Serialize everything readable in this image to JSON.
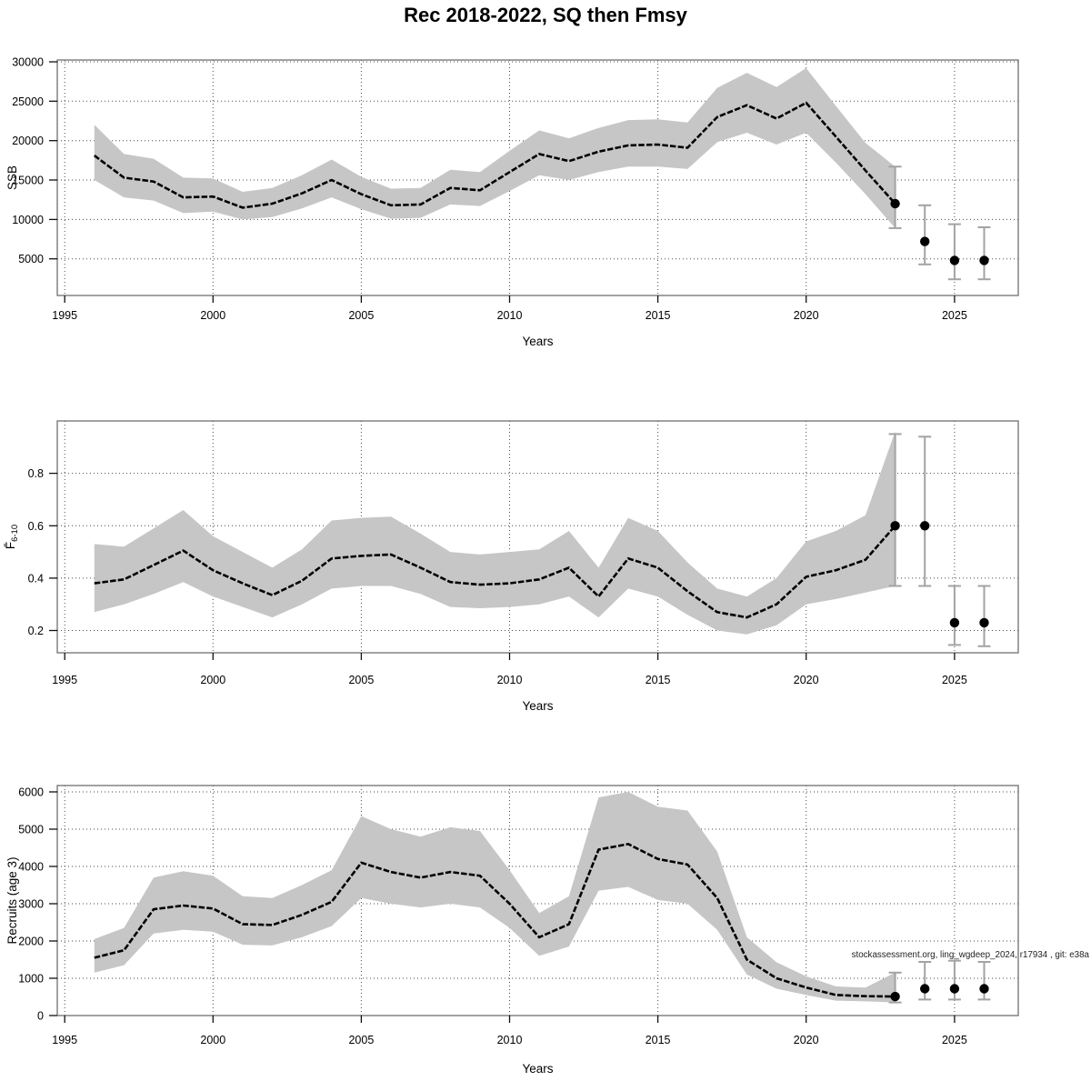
{
  "figure": {
    "title": "Rec 2018-2022, SQ then Fmsy"
  },
  "style": {
    "band_color": "#c6c6c6",
    "line_color": "#000000",
    "errorbar_color": "#a3a3a3",
    "grid_color": "#4a4a4a",
    "frame_color": "#707070",
    "tick_color": "#111111",
    "dot_color": "#000000",
    "text_color": "#000000",
    "annotation_color": "#222222"
  },
  "chart_data": [
    {
      "type": "area",
      "name": "ssb",
      "ylabel_parts": [
        {
          "t": "SSB"
        }
      ],
      "xlabel": "Years",
      "xlim": [
        1994.75,
        2027.15
      ],
      "ylim": [
        350,
        30230
      ],
      "xticks": [
        1995,
        2000,
        2005,
        2010,
        2015,
        2020,
        2025
      ],
      "yticks": [
        5000,
        10000,
        15000,
        20000,
        25000,
        30000
      ],
      "grid": "dotted",
      "years": [
        1996,
        1997,
        1998,
        1999,
        2000,
        2001,
        2002,
        2003,
        2004,
        2005,
        2006,
        2007,
        2008,
        2009,
        2010,
        2011,
        2012,
        2013,
        2014,
        2015,
        2016,
        2017,
        2018,
        2019,
        2020,
        2021,
        2022,
        2023
      ],
      "median": [
        18100,
        15300,
        14800,
        12800,
        12900,
        11500,
        12000,
        13300,
        15000,
        13200,
        11800,
        11900,
        14000,
        13700,
        16000,
        18300,
        17400,
        18600,
        19400,
        19500,
        19100,
        23000,
        24500,
        22800,
        24800,
        20500,
        16200,
        12000
      ],
      "lo": [
        15000,
        12800,
        12400,
        10800,
        11000,
        10000,
        10300,
        11400,
        12800,
        11300,
        10100,
        10200,
        11900,
        11700,
        13600,
        15600,
        15000,
        16000,
        16700,
        16700,
        16400,
        19800,
        21000,
        19500,
        21000,
        17200,
        13200,
        8900
      ],
      "hi": [
        22000,
        18300,
        17700,
        15300,
        15200,
        13500,
        14000,
        15600,
        17600,
        15400,
        13900,
        14000,
        16300,
        16000,
        18700,
        21300,
        20300,
        21600,
        22600,
        22700,
        22300,
        26700,
        28600,
        26800,
        29200,
        24400,
        19700,
        16700
      ],
      "forecast": {
        "years": [
          2023,
          2024,
          2025,
          2026
        ],
        "values": [
          12000,
          7200,
          4800,
          4800
        ],
        "lo": [
          8900,
          4300,
          2400,
          2400
        ],
        "hi": [
          16700,
          11800,
          9400,
          9000
        ]
      },
      "annotation": ""
    },
    {
      "type": "area",
      "name": "fbar",
      "ylabel_parts": [
        {
          "t": "F̄"
        },
        {
          "t": "6-10",
          "sub": true
        }
      ],
      "xlabel": "Years",
      "xlim": [
        1994.75,
        2027.15
      ],
      "ylim": [
        0.115,
        1.0
      ],
      "xticks": [
        1995,
        2000,
        2005,
        2010,
        2015,
        2020,
        2025
      ],
      "yticks": [
        0.2,
        0.4,
        0.6,
        0.8
      ],
      "grid": "dotted",
      "years": [
        1996,
        1997,
        1998,
        1999,
        2000,
        2001,
        2002,
        2003,
        2004,
        2005,
        2006,
        2007,
        2008,
        2009,
        2010,
        2011,
        2012,
        2013,
        2014,
        2015,
        2016,
        2017,
        2018,
        2019,
        2020,
        2021,
        2022,
        2023
      ],
      "median": [
        0.38,
        0.395,
        0.45,
        0.505,
        0.43,
        0.38,
        0.335,
        0.39,
        0.475,
        0.485,
        0.49,
        0.44,
        0.385,
        0.375,
        0.38,
        0.395,
        0.44,
        0.33,
        0.475,
        0.44,
        0.35,
        0.27,
        0.25,
        0.3,
        0.405,
        0.43,
        0.47,
        0.6
      ],
      "lo": [
        0.27,
        0.3,
        0.34,
        0.385,
        0.33,
        0.29,
        0.25,
        0.3,
        0.36,
        0.37,
        0.37,
        0.34,
        0.29,
        0.285,
        0.29,
        0.3,
        0.33,
        0.25,
        0.36,
        0.33,
        0.26,
        0.2,
        0.185,
        0.22,
        0.3,
        0.32,
        0.345,
        0.37
      ],
      "hi": [
        0.53,
        0.52,
        0.59,
        0.66,
        0.56,
        0.5,
        0.44,
        0.51,
        0.62,
        0.63,
        0.635,
        0.57,
        0.5,
        0.49,
        0.5,
        0.51,
        0.58,
        0.44,
        0.63,
        0.58,
        0.46,
        0.36,
        0.33,
        0.4,
        0.54,
        0.58,
        0.64,
        0.96
      ],
      "forecast": {
        "years": [
          2023,
          2024,
          2025,
          2026
        ],
        "values": [
          0.6,
          0.6,
          0.23,
          0.23
        ],
        "lo": [
          0.37,
          0.37,
          0.145,
          0.14
        ],
        "hi": [
          0.95,
          0.94,
          0.37,
          0.37
        ]
      },
      "annotation": ""
    },
    {
      "type": "area",
      "name": "recruits",
      "ylabel_parts": [
        {
          "t": "Recruits (age 3)"
        }
      ],
      "xlabel": "Years",
      "xlim": [
        1994.75,
        2027.15
      ],
      "ylim": [
        0,
        6170
      ],
      "xticks": [
        1995,
        2000,
        2005,
        2010,
        2015,
        2020,
        2025
      ],
      "yticks": [
        0,
        1000,
        2000,
        3000,
        4000,
        5000,
        6000
      ],
      "grid": "dotted",
      "years": [
        1996,
        1997,
        1998,
        1999,
        2000,
        2001,
        2002,
        2003,
        2004,
        2005,
        2006,
        2007,
        2008,
        2009,
        2010,
        2011,
        2012,
        2013,
        2014,
        2015,
        2016,
        2017,
        2018,
        2019,
        2020,
        2021,
        2022,
        2023
      ],
      "median": [
        1550,
        1750,
        2850,
        2950,
        2870,
        2450,
        2430,
        2700,
        3050,
        4100,
        3850,
        3700,
        3850,
        3750,
        3000,
        2100,
        2450,
        4450,
        4600,
        4200,
        4050,
        3150,
        1500,
        1000,
        750,
        550,
        520,
        510
      ],
      "lo": [
        1150,
        1350,
        2200,
        2300,
        2250,
        1900,
        1880,
        2100,
        2400,
        3150,
        3000,
        2900,
        3000,
        2900,
        2350,
        1600,
        1850,
        3350,
        3450,
        3100,
        3000,
        2300,
        1100,
        720,
        550,
        400,
        380,
        350
      ],
      "hi": [
        2050,
        2350,
        3700,
        3870,
        3750,
        3200,
        3150,
        3500,
        3900,
        5350,
        5000,
        4800,
        5050,
        4950,
        3900,
        2750,
        3200,
        5850,
        6000,
        5600,
        5500,
        4400,
        2100,
        1430,
        1050,
        780,
        750,
        1150
      ],
      "forecast": {
        "years": [
          2023,
          2024,
          2025,
          2026
        ],
        "values": [
          510,
          720,
          720,
          720
        ],
        "lo": [
          350,
          430,
          430,
          430
        ],
        "hi": [
          1150,
          1440,
          1470,
          1440
        ]
      },
      "annotation": "stockassessment.org, ling_wgdeep_2024, r17934 , git: e38a"
    }
  ]
}
